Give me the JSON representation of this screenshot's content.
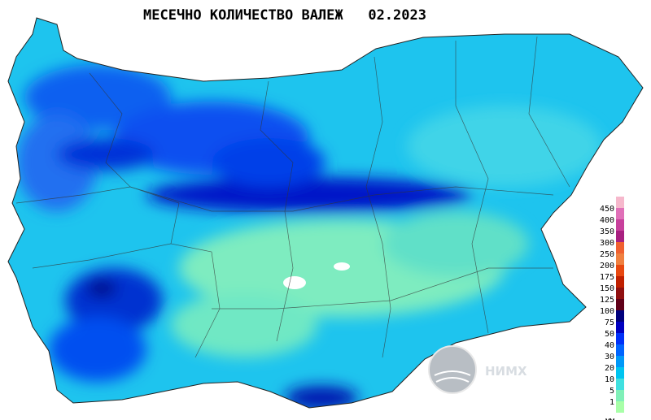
{
  "title": "МЕСЕЧНО КОЛИЧЕСТВО ВАЛЕЖ   02.2023",
  "legend": {
    "unit": "мм",
    "top_color": "#f6b8cc",
    "items": [
      {
        "label": "450",
        "color": "#e070b8"
      },
      {
        "label": "400",
        "color": "#c8409c"
      },
      {
        "label": "350",
        "color": "#a82080"
      },
      {
        "label": "300",
        "color": "#f06030"
      },
      {
        "label": "250",
        "color": "#f08040"
      },
      {
        "label": "200",
        "color": "#e84810"
      },
      {
        "label": "175",
        "color": "#c02000"
      },
      {
        "label": "150",
        "color": "#901010"
      },
      {
        "label": "125",
        "color": "#600018"
      },
      {
        "label": "100",
        "color": "#00007c"
      },
      {
        "label": "75",
        "color": "#0000c0"
      },
      {
        "label": "50",
        "color": "#0030f8"
      },
      {
        "label": "40",
        "color": "#0064ff"
      },
      {
        "label": "30",
        "color": "#0098f8"
      },
      {
        "label": "20",
        "color": "#00c4f0"
      },
      {
        "label": "10",
        "color": "#40e0e0"
      },
      {
        "label": "5",
        "color": "#80f0b8"
      },
      {
        "label": "1",
        "color": "#a8ffa8"
      }
    ]
  },
  "logo": {
    "text": "НИМХ"
  }
}
